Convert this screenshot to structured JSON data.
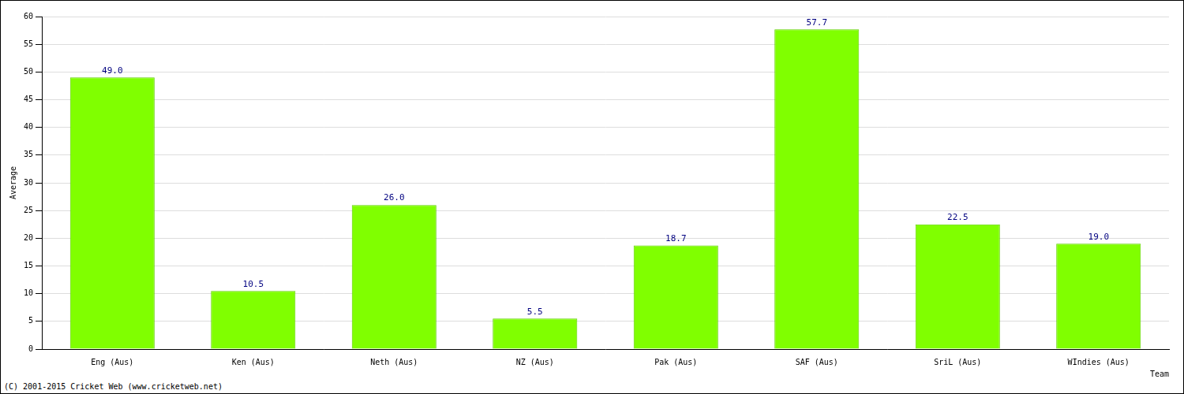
{
  "chart_data": {
    "type": "bar",
    "categories": [
      "Eng (Aus)",
      "Ken (Aus)",
      "Neth (Aus)",
      "NZ (Aus)",
      "Pak (Aus)",
      "SAF (Aus)",
      "SriL (Aus)",
      "WIndies (Aus)"
    ],
    "values": [
      49.0,
      10.5,
      26.0,
      5.5,
      18.7,
      57.7,
      22.5,
      19.0
    ],
    "value_labels": [
      "49.0",
      "10.5",
      "26.0",
      "5.5",
      "18.7",
      "57.7",
      "22.5",
      "19.0"
    ],
    "data_labels": true,
    "color": "#80ff00",
    "x_label": "Team",
    "y_label": "Average",
    "ylim": [
      0,
      60
    ],
    "yticks": [
      0,
      5,
      10,
      15,
      20,
      25,
      30,
      35,
      40,
      45,
      50,
      55,
      60
    ],
    "grid": true,
    "annotations": [
      "(C) 2001-2015 Cricket Web (www.cricketweb.net)"
    ]
  }
}
